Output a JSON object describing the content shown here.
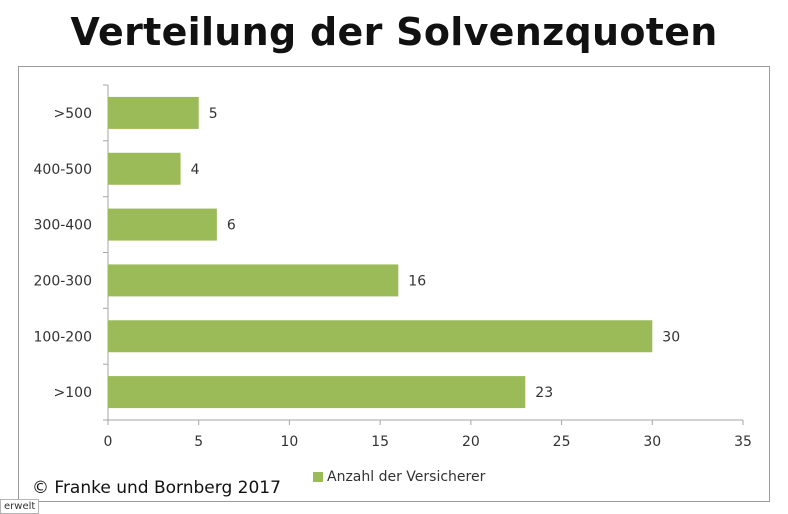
{
  "title": "Verteilung der Solvenzquoten",
  "copyright": "© Franke und Bornberg 2017",
  "source_tag": "erwelt",
  "colors": {
    "bar": "#9bbb59",
    "axis": "#a6a6a6",
    "text": "#333333"
  },
  "chart_data": {
    "type": "bar",
    "orientation": "horizontal",
    "title": "Verteilung der Solvenzquoten",
    "categories": [
      ">500",
      "400-500",
      "300-400",
      "200-300",
      "100-200",
      ">100"
    ],
    "series": [
      {
        "name": "Anzahl der Versicherer",
        "values": [
          5,
          4,
          6,
          16,
          30,
          23
        ]
      }
    ],
    "xlim": [
      0,
      35
    ],
    "xticks": [
      0,
      5,
      10,
      15,
      20,
      25,
      30,
      35
    ],
    "grid": false,
    "legend": "bottom",
    "data_labels": true
  }
}
